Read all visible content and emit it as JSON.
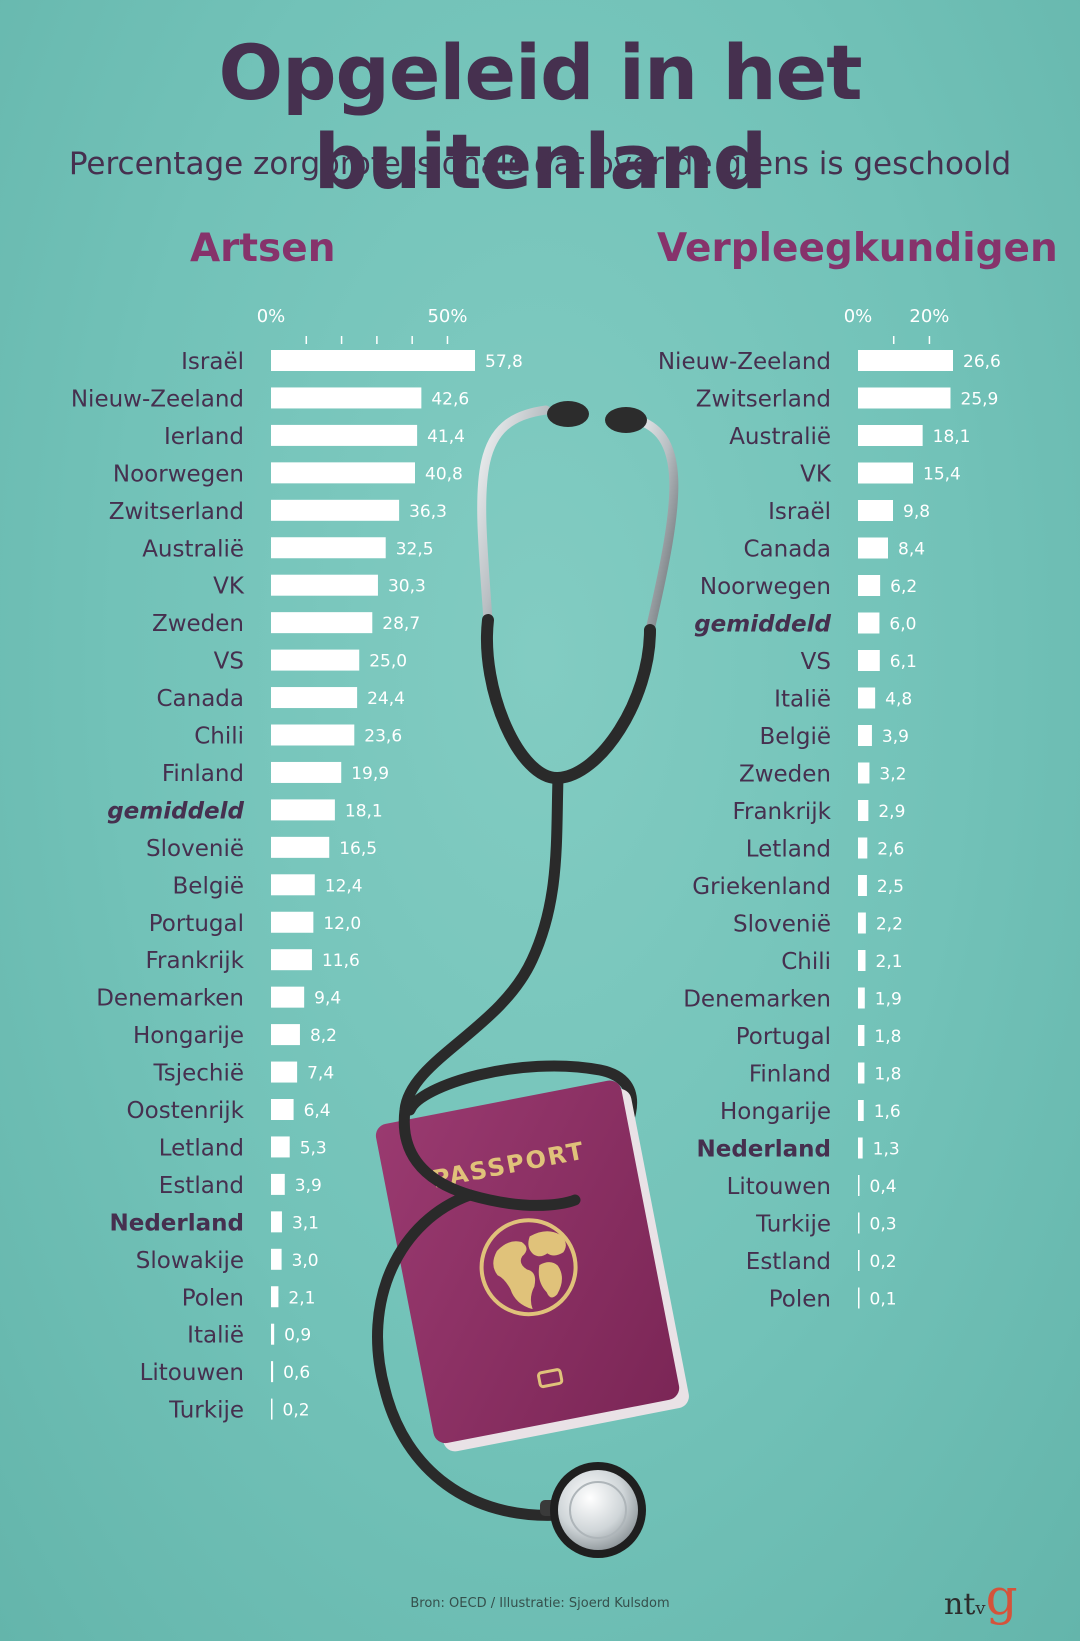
{
  "header": {
    "title": "Opgeleid in het buitenland",
    "subtitle": "Percentage zorgprofessionals dat over de grens is geschoold"
  },
  "footer": {
    "source": "Bron: OECD / Illustratie: Sjoerd Kulsdom",
    "logo_text": "ntvg"
  },
  "illustration": {
    "passport_label": "PASSPORT",
    "passport_color": "#8a2f62",
    "passport_gold": "#e0c27a"
  },
  "colors": {
    "bar": "#ffffff",
    "label": "#46304f",
    "highlight": "#46304f",
    "heading": "#86336b"
  },
  "chart_data": [
    {
      "type": "bar",
      "orientation": "horizontal",
      "title": "Artsen",
      "xlim": [
        0,
        60
      ],
      "tick_labels": [
        "0%",
        "50%"
      ],
      "highlight": {
        "gemiddeld": "bold-italic",
        "Nederland": "bold"
      },
      "categories": [
        "Israël",
        "Nieuw-Zeeland",
        "Ierland",
        "Noorwegen",
        "Zwitserland",
        "Australië",
        "VK",
        "Zweden",
        "VS",
        "Canada",
        "Chili",
        "Finland",
        "gemiddeld",
        "Slovenië",
        "België",
        "Portugal",
        "Frankrijk",
        "Denemarken",
        "Hongarije",
        "Tsjechië",
        "Oostenrijk",
        "Letland",
        "Estland",
        "Nederland",
        "Slowakije",
        "Polen",
        "Italië",
        "Litouwen",
        "Turkije"
      ],
      "values": [
        57.8,
        42.6,
        41.4,
        40.8,
        36.3,
        32.5,
        30.3,
        28.7,
        25.0,
        24.4,
        23.6,
        19.9,
        18.1,
        16.5,
        12.4,
        12.0,
        11.6,
        9.4,
        8.2,
        7.4,
        6.4,
        5.3,
        3.9,
        3.1,
        3.0,
        2.1,
        0.9,
        0.6,
        0.2
      ],
      "value_labels": [
        "57,8",
        "42,6",
        "41,4",
        "40,8",
        "36,3",
        "32,5",
        "30,3",
        "28,7",
        "25,0",
        "24,4",
        "23,6",
        "19,9",
        "18,1",
        "16,5",
        "12,4",
        "12,0",
        "11,6",
        "9,4",
        "8,2",
        "7,4",
        "6,4",
        "5,3",
        "3,9",
        "3,1",
        "3,0",
        "2,1",
        "0,9",
        "0,6",
        "0,2"
      ]
    },
    {
      "type": "bar",
      "orientation": "horizontal",
      "title": "Verpleegkundigen",
      "xlim": [
        0,
        30
      ],
      "tick_labels": [
        "0%",
        "20%"
      ],
      "highlight": {
        "gemiddeld": "bold-italic",
        "Nederland": "bold"
      },
      "categories": [
        "Nieuw-Zeeland",
        "Zwitserland",
        "Australië",
        "VK",
        "Israël",
        "Canada",
        "Noorwegen",
        "gemiddeld",
        "VS",
        "Italië",
        "België",
        "Zweden",
        "Frankrijk",
        "Letland",
        "Griekenland",
        "Slovenië",
        "Chili",
        "Denemarken",
        "Portugal",
        "Finland",
        "Hongarije",
        "Nederland",
        "Litouwen",
        "Turkije",
        "Estland",
        "Polen"
      ],
      "values": [
        26.6,
        25.9,
        18.1,
        15.4,
        9.8,
        8.4,
        6.2,
        6.0,
        6.1,
        4.8,
        3.9,
        3.2,
        2.9,
        2.6,
        2.5,
        2.2,
        2.1,
        1.9,
        1.8,
        1.8,
        1.6,
        1.3,
        0.4,
        0.3,
        0.2,
        0.1
      ],
      "value_labels": [
        "26,6",
        "25,9",
        "18,1",
        "15,4",
        "9,8",
        "8,4",
        "6,2",
        "6,0",
        "6,1",
        "4,8",
        "3,9",
        "3,2",
        "2,9",
        "2,6",
        "2,5",
        "2,2",
        "2,1",
        "1,9",
        "1,8",
        "1,8",
        "1,6",
        "1,3",
        "0,4",
        "0,3",
        "0,2",
        "0,1"
      ]
    }
  ]
}
